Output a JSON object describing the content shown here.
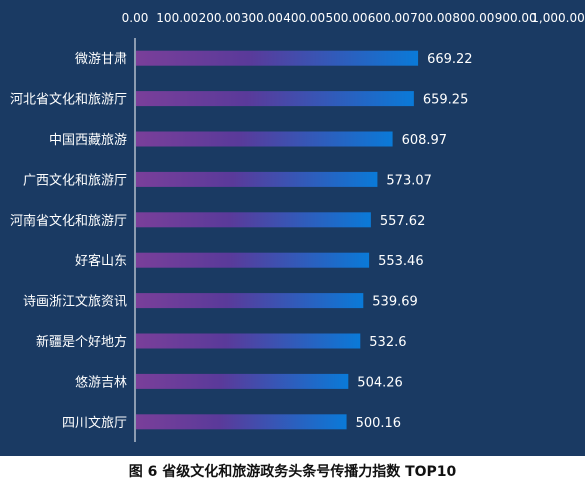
{
  "caption": "图 6 省级文化和旅游政务头条号传播力指数 TOP10",
  "colors": {
    "panel_background": "#1a3a63",
    "bar_start": "#7a3f9a",
    "bar_mid": "#5a3a9a",
    "bar_end": "#0a7ad8",
    "text": "#ffffff",
    "axis": "#ffffff"
  },
  "chart_data": {
    "type": "bar",
    "orientation": "horizontal",
    "x_axis_position": "top",
    "xlim": [
      0,
      1000
    ],
    "x_ticks": [
      "0.00",
      "100.00",
      "200.00",
      "300.00",
      "400.00",
      "500.00",
      "600.00",
      "700.00",
      "800.00",
      "900.00",
      "1,000.00"
    ],
    "categories": [
      "微游甘肃",
      "河北省文化和旅游厅",
      "中国西藏旅游",
      "广西文化和旅游厅",
      "河南省文化和旅游厅",
      "好客山东",
      "诗画浙江文旅资讯",
      "新疆是个好地方",
      "悠游吉林",
      "四川文旅厅"
    ],
    "values": [
      669.22,
      659.25,
      608.97,
      573.07,
      557.62,
      553.46,
      539.69,
      532.6,
      504.26,
      500.16
    ],
    "value_labels": [
      "669.22",
      "659.25",
      "608.97",
      "573.07",
      "557.62",
      "553.46",
      "539.69",
      "532.6",
      "504.26",
      "500.16"
    ],
    "grid": false,
    "legend": "none"
  }
}
